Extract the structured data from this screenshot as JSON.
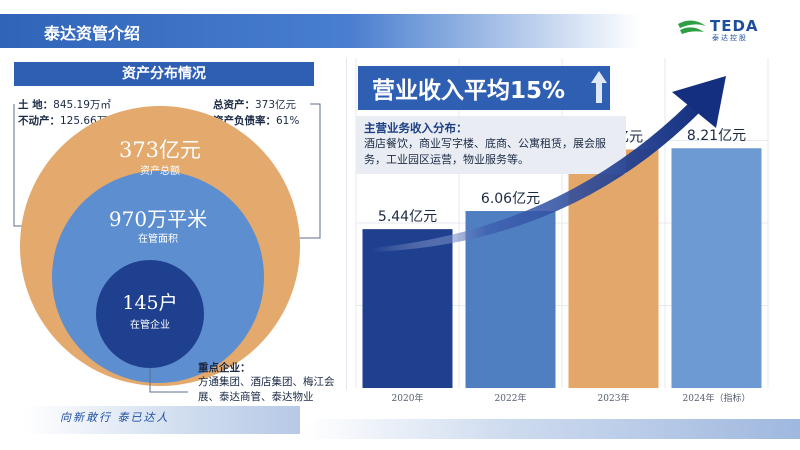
{
  "header": {
    "title": "泰达资管介绍"
  },
  "logo": {
    "text": "TEDA",
    "sub": "泰达控股"
  },
  "assets": {
    "section_title": "资产分布情况",
    "land_label": "土  地：",
    "land_value": "845.19万㎡",
    "realestate_label": "不动产：",
    "realestate_value": "125.66万㎡",
    "total_assets_label": "总资产：",
    "total_assets_value": "373亿元",
    "debt_ratio_label": "资产负债率：",
    "debt_ratio_value": "61%",
    "outer_value": "373亿元",
    "outer_label": "资产总额",
    "middle_value": "970万平米",
    "middle_label": "在管面积",
    "inner_value": "145户",
    "inner_label": "在管企业"
  },
  "key_enterprises": {
    "title": "重点企业：",
    "text": "方通集团、酒店集团、梅江会展、泰达商管、泰达物业"
  },
  "footer": {
    "slogan": "向新敢行  泰已达人"
  },
  "revenue": {
    "growth_title": "营业收入平均15%",
    "desc_title": "主营业务收入分布：",
    "desc_text": "酒店餐饮，商业写字楼、底商、公寓租赁，展会服务，工业园区运营，物业服务等。"
  },
  "chart_data": {
    "type": "bar",
    "categories": [
      "2020年",
      "2022年",
      "2023年",
      "2024年（指标）"
    ],
    "values": [
      5.44,
      6.06,
      8.17,
      8.21
    ],
    "value_labels": [
      "5.44亿元",
      "6.06亿元",
      "8.17亿元",
      "8.21亿元"
    ],
    "colors": [
      "#1f3f8f",
      "#4f7fc0",
      "#e4a76a",
      "#6d9ad2"
    ],
    "ylim": [
      0,
      11.3
    ],
    "grid": true
  }
}
